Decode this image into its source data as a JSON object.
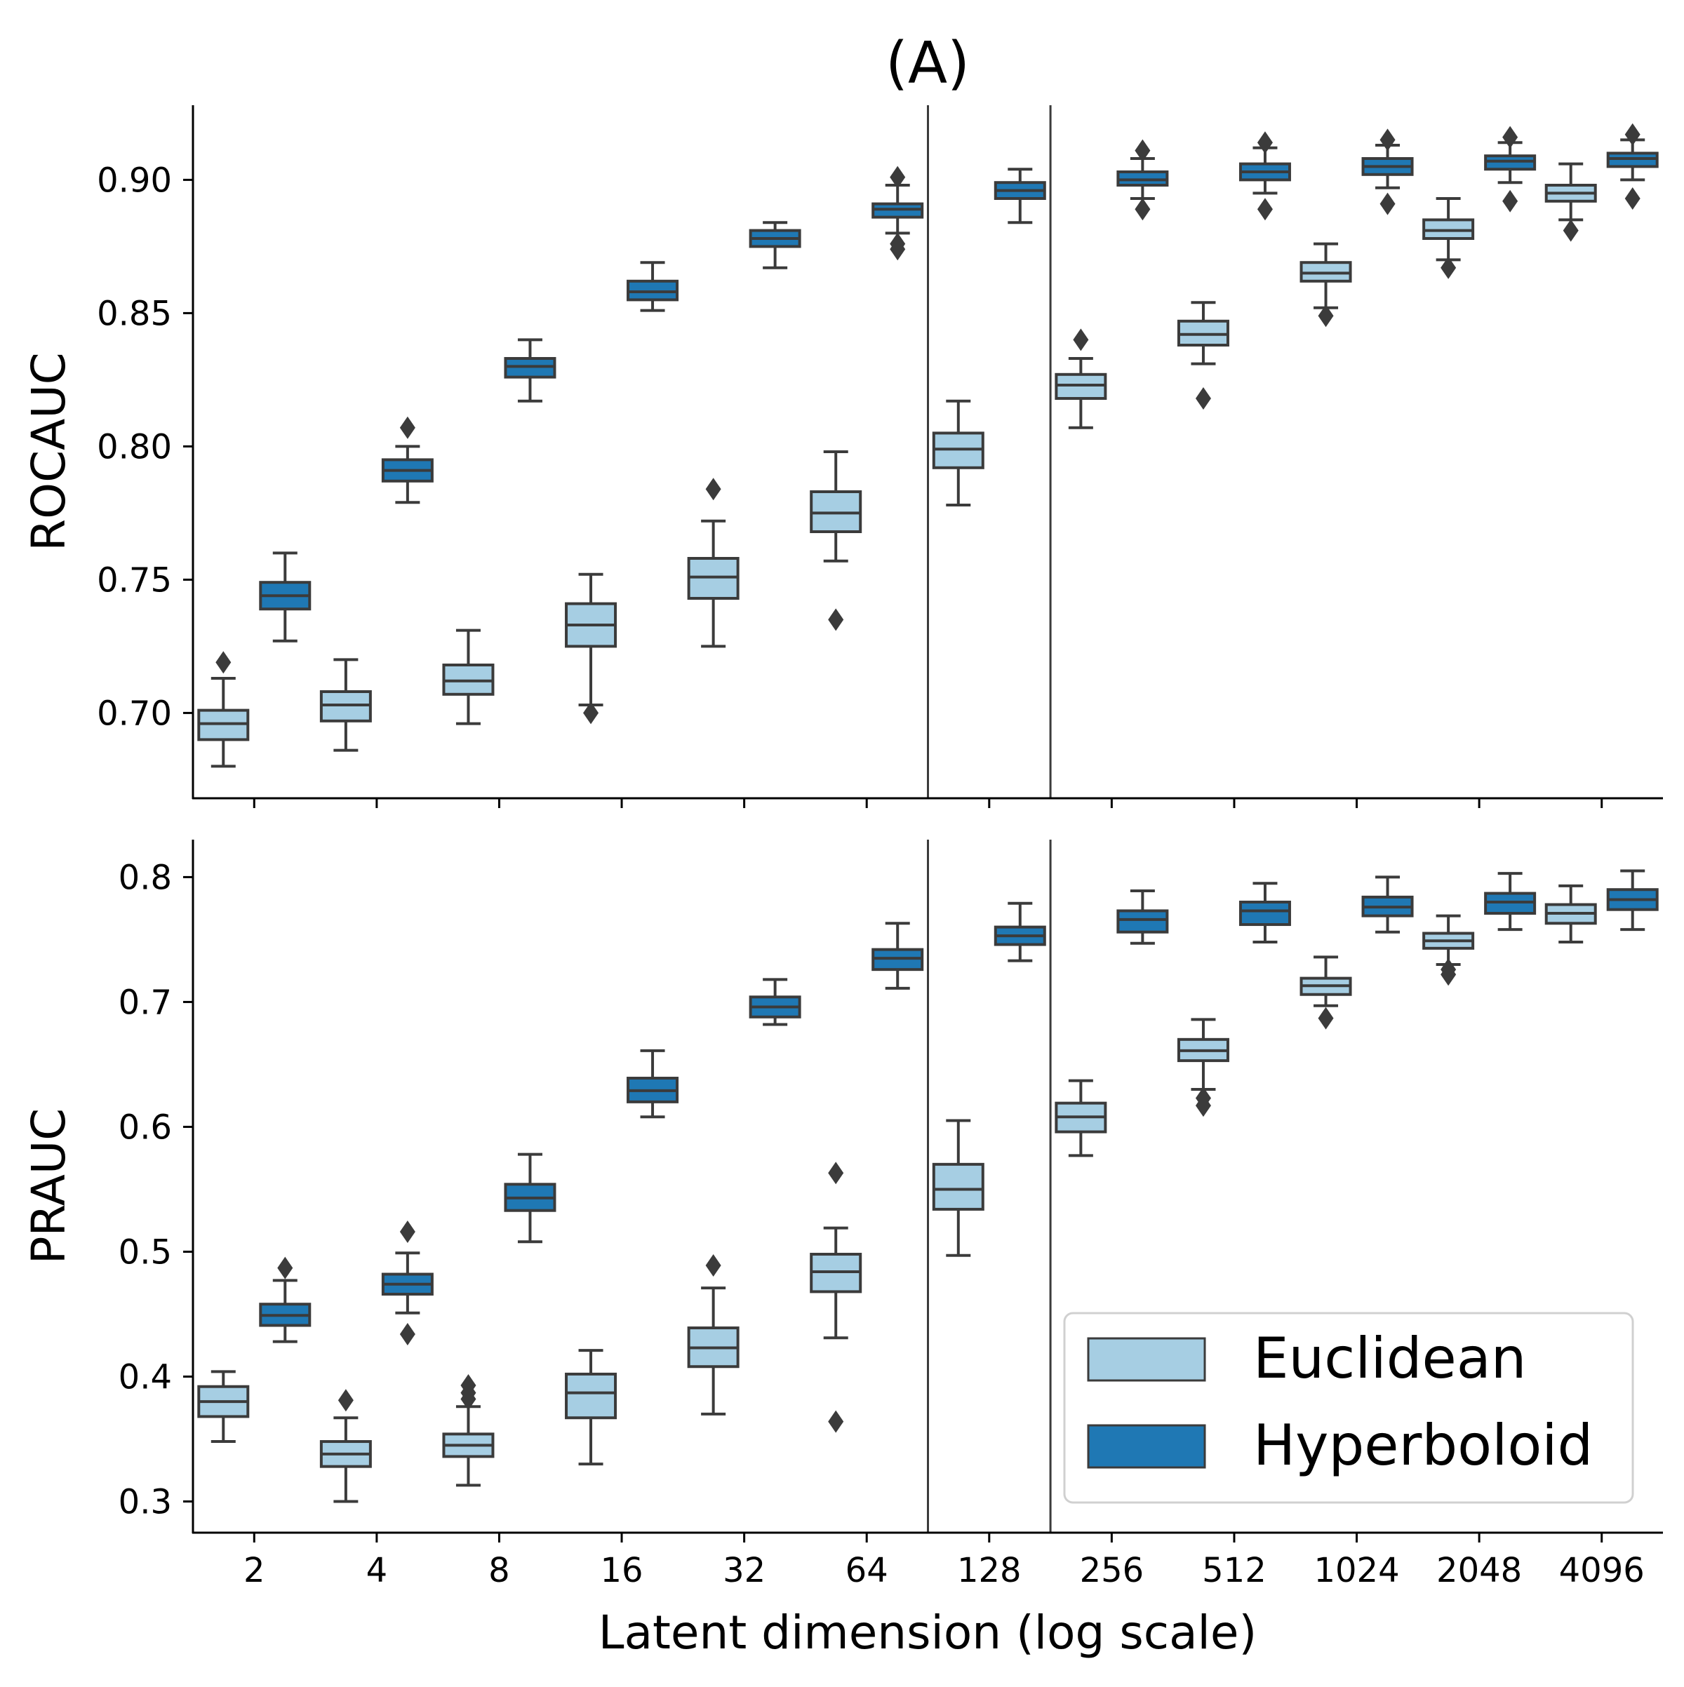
{
  "title": "(A)",
  "xlabel": "Latent dimension (log scale)",
  "colors": {
    "euclidean": "#a6cee3",
    "hyperboloid": "#1f78b4",
    "edge": "#3b3b3b"
  },
  "legend": {
    "placement": "lower-right of bottom panel",
    "entries": [
      {
        "label": "Euclidean",
        "color": "#a6cee3"
      },
      {
        "label": "Hyperboloid",
        "color": "#1f78b4"
      }
    ]
  },
  "chart_data": [
    {
      "type": "box",
      "panel": "top",
      "ylabel": "ROCAUC",
      "ylim": [
        0.668,
        0.928
      ],
      "yticks": [
        0.7,
        0.75,
        0.8,
        0.85,
        0.9
      ],
      "ytick_labels": [
        "0.70",
        "0.75",
        "0.80",
        "0.85",
        "0.90"
      ],
      "categories": [
        "2",
        "4",
        "8",
        "16",
        "32",
        "64",
        "128",
        "256",
        "512",
        "1024",
        "2048",
        "4096"
      ],
      "separators_after_index": [
        5,
        6
      ],
      "series": [
        {
          "name": "Euclidean",
          "boxes": [
            {
              "whislo": 0.68,
              "q1": 0.69,
              "med": 0.696,
              "q3": 0.701,
              "whishi": 0.713,
              "fliers": [
                0.719
              ]
            },
            {
              "whislo": 0.686,
              "q1": 0.697,
              "med": 0.703,
              "q3": 0.708,
              "whishi": 0.72,
              "fliers": []
            },
            {
              "whislo": 0.696,
              "q1": 0.707,
              "med": 0.712,
              "q3": 0.718,
              "whishi": 0.731,
              "fliers": []
            },
            {
              "whislo": 0.703,
              "q1": 0.725,
              "med": 0.733,
              "q3": 0.741,
              "whishi": 0.752,
              "fliers": [
                0.7
              ]
            },
            {
              "whislo": 0.725,
              "q1": 0.743,
              "med": 0.751,
              "q3": 0.758,
              "whishi": 0.772,
              "fliers": [
                0.784
              ]
            },
            {
              "whislo": 0.757,
              "q1": 0.768,
              "med": 0.775,
              "q3": 0.783,
              "whishi": 0.798,
              "fliers": [
                0.735
              ]
            },
            {
              "whislo": 0.778,
              "q1": 0.792,
              "med": 0.799,
              "q3": 0.805,
              "whishi": 0.817,
              "fliers": []
            },
            {
              "whislo": 0.807,
              "q1": 0.818,
              "med": 0.823,
              "q3": 0.827,
              "whishi": 0.833,
              "fliers": [
                0.84
              ]
            },
            {
              "whislo": 0.831,
              "q1": 0.838,
              "med": 0.842,
              "q3": 0.847,
              "whishi": 0.854,
              "fliers": [
                0.818
              ]
            },
            {
              "whislo": 0.852,
              "q1": 0.862,
              "med": 0.865,
              "q3": 0.869,
              "whishi": 0.876,
              "fliers": [
                0.849
              ]
            },
            {
              "whislo": 0.87,
              "q1": 0.878,
              "med": 0.881,
              "q3": 0.885,
              "whishi": 0.893,
              "fliers": [
                0.867
              ]
            },
            {
              "whislo": 0.885,
              "q1": 0.892,
              "med": 0.895,
              "q3": 0.898,
              "whishi": 0.906,
              "fliers": [
                0.881
              ]
            }
          ]
        },
        {
          "name": "Hyperboloid",
          "boxes": [
            {
              "whislo": 0.727,
              "q1": 0.739,
              "med": 0.744,
              "q3": 0.749,
              "whishi": 0.76,
              "fliers": []
            },
            {
              "whislo": 0.779,
              "q1": 0.787,
              "med": 0.791,
              "q3": 0.795,
              "whishi": 0.8,
              "fliers": [
                0.807
              ]
            },
            {
              "whislo": 0.817,
              "q1": 0.826,
              "med": 0.83,
              "q3": 0.833,
              "whishi": 0.84,
              "fliers": []
            },
            {
              "whislo": 0.851,
              "q1": 0.855,
              "med": 0.858,
              "q3": 0.862,
              "whishi": 0.869,
              "fliers": []
            },
            {
              "whislo": 0.867,
              "q1": 0.875,
              "med": 0.878,
              "q3": 0.881,
              "whishi": 0.884,
              "fliers": []
            },
            {
              "whislo": 0.88,
              "q1": 0.886,
              "med": 0.889,
              "q3": 0.891,
              "whishi": 0.898,
              "fliers": [
                0.874,
                0.876,
                0.901
              ]
            },
            {
              "whislo": 0.884,
              "q1": 0.893,
              "med": 0.896,
              "q3": 0.899,
              "whishi": 0.904,
              "fliers": []
            },
            {
              "whislo": 0.893,
              "q1": 0.898,
              "med": 0.9,
              "q3": 0.903,
              "whishi": 0.908,
              "fliers": [
                0.889,
                0.911
              ]
            },
            {
              "whislo": 0.895,
              "q1": 0.9,
              "med": 0.903,
              "q3": 0.906,
              "whishi": 0.912,
              "fliers": [
                0.889,
                0.914
              ]
            },
            {
              "whislo": 0.897,
              "q1": 0.902,
              "med": 0.905,
              "q3": 0.908,
              "whishi": 0.913,
              "fliers": [
                0.891,
                0.915
              ]
            },
            {
              "whislo": 0.899,
              "q1": 0.904,
              "med": 0.907,
              "q3": 0.909,
              "whishi": 0.914,
              "fliers": [
                0.892,
                0.916
              ]
            },
            {
              "whislo": 0.9,
              "q1": 0.905,
              "med": 0.908,
              "q3": 0.91,
              "whishi": 0.915,
              "fliers": [
                0.893,
                0.917
              ]
            }
          ]
        }
      ]
    },
    {
      "type": "box",
      "panel": "bottom",
      "ylabel": "PRAUC",
      "ylim": [
        0.275,
        0.83
      ],
      "yticks": [
        0.3,
        0.4,
        0.5,
        0.6,
        0.7,
        0.8
      ],
      "ytick_labels": [
        "0.3",
        "0.4",
        "0.5",
        "0.6",
        "0.7",
        "0.8"
      ],
      "categories": [
        "2",
        "4",
        "8",
        "16",
        "32",
        "64",
        "128",
        "256",
        "512",
        "1024",
        "2048",
        "4096"
      ],
      "separators_after_index": [
        5,
        6
      ],
      "series": [
        {
          "name": "Euclidean",
          "boxes": [
            {
              "whislo": 0.348,
              "q1": 0.368,
              "med": 0.38,
              "q3": 0.392,
              "whishi": 0.404,
              "fliers": []
            },
            {
              "whislo": 0.3,
              "q1": 0.328,
              "med": 0.338,
              "q3": 0.348,
              "whishi": 0.367,
              "fliers": [
                0.381
              ]
            },
            {
              "whislo": 0.313,
              "q1": 0.336,
              "med": 0.345,
              "q3": 0.354,
              "whishi": 0.376,
              "fliers": [
                0.382,
                0.387,
                0.393
              ]
            },
            {
              "whislo": 0.33,
              "q1": 0.367,
              "med": 0.387,
              "q3": 0.402,
              "whishi": 0.421,
              "fliers": []
            },
            {
              "whislo": 0.37,
              "q1": 0.408,
              "med": 0.423,
              "q3": 0.439,
              "whishi": 0.471,
              "fliers": [
                0.489
              ]
            },
            {
              "whislo": 0.431,
              "q1": 0.468,
              "med": 0.484,
              "q3": 0.498,
              "whishi": 0.519,
              "fliers": [
                0.364,
                0.563
              ]
            },
            {
              "whislo": 0.497,
              "q1": 0.534,
              "med": 0.55,
              "q3": 0.57,
              "whishi": 0.605,
              "fliers": []
            },
            {
              "whislo": 0.577,
              "q1": 0.596,
              "med": 0.608,
              "q3": 0.619,
              "whishi": 0.637,
              "fliers": []
            },
            {
              "whislo": 0.63,
              "q1": 0.653,
              "med": 0.661,
              "q3": 0.67,
              "whishi": 0.686,
              "fliers": [
                0.617,
                0.623
              ]
            },
            {
              "whislo": 0.697,
              "q1": 0.706,
              "med": 0.713,
              "q3": 0.719,
              "whishi": 0.736,
              "fliers": [
                0.687
              ]
            },
            {
              "whislo": 0.73,
              "q1": 0.743,
              "med": 0.749,
              "q3": 0.755,
              "whishi": 0.769,
              "fliers": [
                0.722,
                0.726
              ]
            },
            {
              "whislo": 0.748,
              "q1": 0.763,
              "med": 0.771,
              "q3": 0.778,
              "whishi": 0.793,
              "fliers": []
            }
          ]
        },
        {
          "name": "Hyperboloid",
          "boxes": [
            {
              "whislo": 0.428,
              "q1": 0.441,
              "med": 0.449,
              "q3": 0.458,
              "whishi": 0.477,
              "fliers": [
                0.487
              ]
            },
            {
              "whislo": 0.451,
              "q1": 0.466,
              "med": 0.474,
              "q3": 0.482,
              "whishi": 0.499,
              "fliers": [
                0.434,
                0.516
              ]
            },
            {
              "whislo": 0.508,
              "q1": 0.533,
              "med": 0.543,
              "q3": 0.554,
              "whishi": 0.578,
              "fliers": []
            },
            {
              "whislo": 0.608,
              "q1": 0.62,
              "med": 0.629,
              "q3": 0.639,
              "whishi": 0.661,
              "fliers": []
            },
            {
              "whislo": 0.682,
              "q1": 0.688,
              "med": 0.696,
              "q3": 0.704,
              "whishi": 0.718,
              "fliers": []
            },
            {
              "whislo": 0.711,
              "q1": 0.726,
              "med": 0.735,
              "q3": 0.742,
              "whishi": 0.763,
              "fliers": []
            },
            {
              "whislo": 0.733,
              "q1": 0.746,
              "med": 0.753,
              "q3": 0.76,
              "whishi": 0.779,
              "fliers": []
            },
            {
              "whislo": 0.747,
              "q1": 0.756,
              "med": 0.766,
              "q3": 0.773,
              "whishi": 0.789,
              "fliers": []
            },
            {
              "whislo": 0.748,
              "q1": 0.762,
              "med": 0.773,
              "q3": 0.78,
              "whishi": 0.795,
              "fliers": []
            },
            {
              "whislo": 0.756,
              "q1": 0.769,
              "med": 0.776,
              "q3": 0.784,
              "whishi": 0.8,
              "fliers": []
            },
            {
              "whislo": 0.758,
              "q1": 0.771,
              "med": 0.78,
              "q3": 0.787,
              "whishi": 0.803,
              "fliers": []
            },
            {
              "whislo": 0.758,
              "q1": 0.774,
              "med": 0.782,
              "q3": 0.79,
              "whishi": 0.805,
              "fliers": []
            }
          ]
        }
      ]
    }
  ]
}
